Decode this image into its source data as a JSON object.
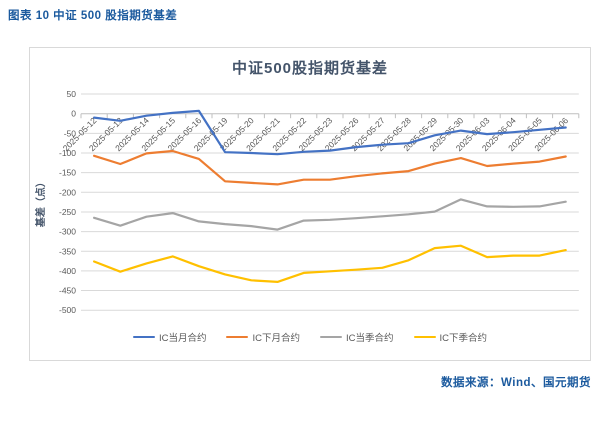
{
  "header": {
    "title": "图表 10  中证 500 股指期货基差"
  },
  "source": {
    "label": "数据来源：Wind、国元期货"
  },
  "chart_data": {
    "type": "line",
    "title": "中证500股指期货基差",
    "xlabel": "",
    "ylabel": "基差（点）",
    "ylim": [
      -500,
      50
    ],
    "y_tick_step": 50,
    "grid": true,
    "legend_position": "bottom",
    "x_tick_rotation": 45,
    "categories": [
      "2025-05-12",
      "2025-05-13",
      "2025-05-14",
      "2025-05-15",
      "2025-05-16",
      "2025-05-19",
      "2025-05-20",
      "2025-05-21",
      "2025-05-22",
      "2025-05-23",
      "2025-05-26",
      "2025-05-27",
      "2025-05-28",
      "2025-05-29",
      "2025-05-30",
      "2025-06-03",
      "2025-06-04",
      "2025-06-05",
      "2025-06-06"
    ],
    "series": [
      {
        "name": "IC当月合约",
        "color": "#4472C4",
        "values": [
          -10,
          -18,
          -5,
          2,
          7,
          -98,
          -100,
          -103,
          -97,
          -94,
          -85,
          -79,
          -75,
          -55,
          -43,
          -52,
          -47,
          -41,
          -35
        ]
      },
      {
        "name": "IC下月合约",
        "color": "#ED7D31",
        "values": [
          -107,
          -128,
          -101,
          -95,
          -115,
          -172,
          -176,
          -180,
          -168,
          -168,
          -159,
          -152,
          -146,
          -127,
          -113,
          -133,
          -127,
          -122,
          -109
        ]
      },
      {
        "name": "IC当季合约",
        "color": "#A5A5A5",
        "values": [
          -265,
          -285,
          -262,
          -253,
          -274,
          -281,
          -286,
          -295,
          -272,
          -270,
          -266,
          -261,
          -256,
          -249,
          -218,
          -236,
          -237,
          -236,
          -224
        ]
      },
      {
        "name": "IC下季合约",
        "color": "#FFC000",
        "values": [
          -376,
          -402,
          -381,
          -363,
          -388,
          -409,
          -424,
          -428,
          -405,
          -401,
          -397,
          -392,
          -373,
          -342,
          -336,
          -365,
          -361,
          -361,
          -347
        ]
      }
    ],
    "style": {
      "gridline_color": "#d9d9d9",
      "zero_axis_color": "#bfbfbf",
      "tick_label_color": "#595959",
      "title_color": "#44546a",
      "line_width": 2.2
    }
  }
}
